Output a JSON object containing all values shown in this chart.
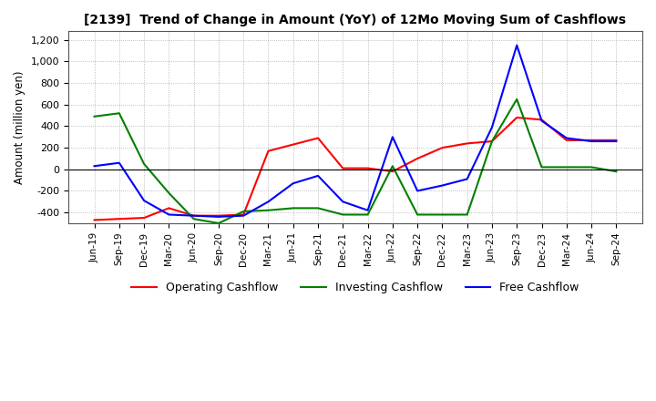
{
  "title": "[2139]  Trend of Change in Amount (YoY) of 12Mo Moving Sum of Cashflows",
  "ylabel": "Amount (million yen)",
  "ylim": [
    -500,
    1280
  ],
  "yticks": [
    -400,
    -200,
    0,
    200,
    400,
    600,
    800,
    1000,
    1200
  ],
  "x_labels": [
    "Jun-19",
    "Sep-19",
    "Dec-19",
    "Mar-20",
    "Jun-20",
    "Sep-20",
    "Dec-20",
    "Mar-21",
    "Jun-21",
    "Sep-21",
    "Dec-21",
    "Mar-22",
    "Jun-22",
    "Sep-22",
    "Dec-22",
    "Mar-23",
    "Jun-23",
    "Sep-23",
    "Dec-23",
    "Mar-24",
    "Jun-24",
    "Sep-24"
  ],
  "operating": [
    -470,
    -460,
    -450,
    -360,
    -430,
    -430,
    -420,
    170,
    230,
    290,
    10,
    10,
    -20,
    100,
    200,
    240,
    260,
    480,
    460,
    270,
    270,
    270
  ],
  "investing": [
    490,
    520,
    50,
    -220,
    -460,
    -500,
    -390,
    -380,
    -360,
    -360,
    -420,
    -420,
    30,
    -420,
    -420,
    -420,
    260,
    650,
    20,
    20,
    20,
    -20
  ],
  "free": [
    30,
    60,
    -290,
    -420,
    -430,
    -440,
    -430,
    -300,
    -130,
    -60,
    -300,
    -380,
    300,
    -200,
    -150,
    -90,
    390,
    1150,
    450,
    290,
    260,
    260
  ],
  "operating_color": "#ff0000",
  "investing_color": "#008000",
  "free_color": "#0000ff",
  "background_color": "#ffffff",
  "grid_color": "#aaaaaa"
}
